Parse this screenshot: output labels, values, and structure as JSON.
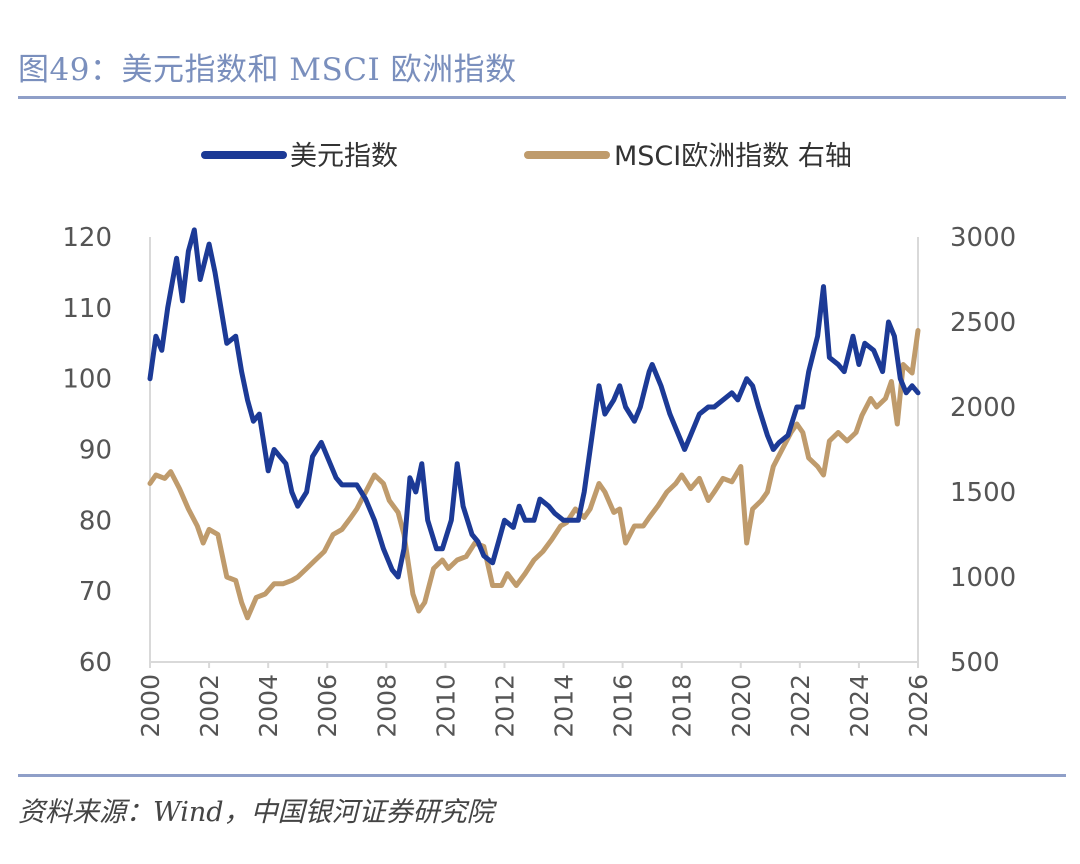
{
  "header": {
    "title": "图49：美元指数和 MSCI 欧洲指数"
  },
  "footer": {
    "source": "资料来源：Wind，中国银河证券研究院"
  },
  "chart_data": {
    "type": "line",
    "title": "图49：美元指数和 MSCI 欧洲指数",
    "xlabel": "",
    "x_range": [
      2000,
      2026
    ],
    "x_ticks": [
      "2000",
      "2002",
      "2004",
      "2006",
      "2008",
      "2010",
      "2012",
      "2014",
      "2016",
      "2018",
      "2020",
      "2022",
      "2024",
      "2026"
    ],
    "y_left": {
      "range": [
        60,
        120
      ],
      "ticks": [
        "120",
        "110",
        "100",
        "90",
        "80",
        "70",
        "60"
      ]
    },
    "y_right": {
      "range": [
        500,
        3000
      ],
      "ticks": [
        "3000",
        "2500",
        "2000",
        "1500",
        "1000",
        "500"
      ]
    },
    "grid": false,
    "legend_position": "top",
    "series": [
      {
        "name": "美元指数",
        "axis": "left",
        "color": "#1c3a96",
        "points": [
          [
            2000.0,
            100
          ],
          [
            2000.2,
            106
          ],
          [
            2000.4,
            104
          ],
          [
            2000.6,
            110
          ],
          [
            2000.9,
            117
          ],
          [
            2001.1,
            111
          ],
          [
            2001.3,
            118
          ],
          [
            2001.5,
            121
          ],
          [
            2001.7,
            114
          ],
          [
            2002.0,
            119
          ],
          [
            2002.2,
            115
          ],
          [
            2002.4,
            110
          ],
          [
            2002.6,
            105
          ],
          [
            2002.9,
            106
          ],
          [
            2003.1,
            101
          ],
          [
            2003.3,
            97
          ],
          [
            2003.5,
            94
          ],
          [
            2003.7,
            95
          ],
          [
            2004.0,
            87
          ],
          [
            2004.2,
            90
          ],
          [
            2004.4,
            89
          ],
          [
            2004.6,
            88
          ],
          [
            2004.8,
            84
          ],
          [
            2005.0,
            82
          ],
          [
            2005.3,
            84
          ],
          [
            2005.5,
            89
          ],
          [
            2005.8,
            91
          ],
          [
            2006.0,
            89
          ],
          [
            2006.3,
            86
          ],
          [
            2006.5,
            85
          ],
          [
            2006.8,
            85
          ],
          [
            2007.0,
            85
          ],
          [
            2007.3,
            83
          ],
          [
            2007.6,
            80
          ],
          [
            2007.9,
            76
          ],
          [
            2008.2,
            73
          ],
          [
            2008.4,
            72
          ],
          [
            2008.6,
            76
          ],
          [
            2008.8,
            86
          ],
          [
            2009.0,
            84
          ],
          [
            2009.2,
            88
          ],
          [
            2009.4,
            80
          ],
          [
            2009.7,
            76
          ],
          [
            2009.9,
            76
          ],
          [
            2010.2,
            80
          ],
          [
            2010.4,
            88
          ],
          [
            2010.6,
            82
          ],
          [
            2010.9,
            78
          ],
          [
            2011.1,
            77
          ],
          [
            2011.3,
            75
          ],
          [
            2011.6,
            74
          ],
          [
            2011.8,
            77
          ],
          [
            2012.0,
            80
          ],
          [
            2012.3,
            79
          ],
          [
            2012.5,
            82
          ],
          [
            2012.7,
            80
          ],
          [
            2013.0,
            80
          ],
          [
            2013.2,
            83
          ],
          [
            2013.5,
            82
          ],
          [
            2013.7,
            81
          ],
          [
            2014.0,
            80
          ],
          [
            2014.3,
            80
          ],
          [
            2014.5,
            80
          ],
          [
            2014.7,
            84
          ],
          [
            2015.0,
            93
          ],
          [
            2015.2,
            99
          ],
          [
            2015.4,
            95
          ],
          [
            2015.7,
            97
          ],
          [
            2015.9,
            99
          ],
          [
            2016.1,
            96
          ],
          [
            2016.4,
            94
          ],
          [
            2016.6,
            96
          ],
          [
            2016.9,
            101
          ],
          [
            2017.0,
            102
          ],
          [
            2017.3,
            99
          ],
          [
            2017.6,
            95
          ],
          [
            2017.8,
            93
          ],
          [
            2018.1,
            90
          ],
          [
            2018.3,
            92
          ],
          [
            2018.6,
            95
          ],
          [
            2018.9,
            96
          ],
          [
            2019.1,
            96
          ],
          [
            2019.4,
            97
          ],
          [
            2019.7,
            98
          ],
          [
            2019.9,
            97
          ],
          [
            2020.2,
            100
          ],
          [
            2020.4,
            99
          ],
          [
            2020.6,
            96
          ],
          [
            2020.9,
            92
          ],
          [
            2021.1,
            90
          ],
          [
            2021.3,
            91
          ],
          [
            2021.6,
            92
          ],
          [
            2021.9,
            96
          ],
          [
            2022.1,
            96
          ],
          [
            2022.3,
            101
          ],
          [
            2022.6,
            106
          ],
          [
            2022.8,
            113
          ],
          [
            2023.0,
            103
          ],
          [
            2023.3,
            102
          ],
          [
            2023.5,
            101
          ],
          [
            2023.8,
            106
          ],
          [
            2024.0,
            102
          ],
          [
            2024.2,
            105
          ],
          [
            2024.5,
            104
          ],
          [
            2024.8,
            101
          ],
          [
            2025.0,
            108
          ],
          [
            2025.2,
            106
          ],
          [
            2025.4,
            100
          ],
          [
            2025.6,
            98
          ],
          [
            2025.8,
            99
          ],
          [
            2026.0,
            98
          ]
        ]
      },
      {
        "name": "MSCI欧洲指数 右轴",
        "axis": "right",
        "color": "#bf9b6c",
        "points": [
          [
            2000.0,
            1550
          ],
          [
            2000.2,
            1600
          ],
          [
            2000.5,
            1580
          ],
          [
            2000.7,
            1620
          ],
          [
            2001.0,
            1520
          ],
          [
            2001.3,
            1400
          ],
          [
            2001.6,
            1300
          ],
          [
            2001.8,
            1200
          ],
          [
            2002.0,
            1280
          ],
          [
            2002.3,
            1250
          ],
          [
            2002.6,
            1000
          ],
          [
            2002.9,
            980
          ],
          [
            2003.1,
            850
          ],
          [
            2003.3,
            760
          ],
          [
            2003.6,
            880
          ],
          [
            2003.9,
            900
          ],
          [
            2004.2,
            960
          ],
          [
            2004.5,
            960
          ],
          [
            2004.8,
            980
          ],
          [
            2005.0,
            1000
          ],
          [
            2005.3,
            1050
          ],
          [
            2005.6,
            1100
          ],
          [
            2005.9,
            1150
          ],
          [
            2006.2,
            1250
          ],
          [
            2006.5,
            1280
          ],
          [
            2006.8,
            1350
          ],
          [
            2007.0,
            1400
          ],
          [
            2007.3,
            1500
          ],
          [
            2007.6,
            1600
          ],
          [
            2007.9,
            1550
          ],
          [
            2008.1,
            1450
          ],
          [
            2008.4,
            1380
          ],
          [
            2008.6,
            1250
          ],
          [
            2008.9,
            900
          ],
          [
            2009.1,
            800
          ],
          [
            2009.3,
            850
          ],
          [
            2009.6,
            1050
          ],
          [
            2009.9,
            1100
          ],
          [
            2010.1,
            1050
          ],
          [
            2010.4,
            1100
          ],
          [
            2010.7,
            1120
          ],
          [
            2011.0,
            1200
          ],
          [
            2011.3,
            1180
          ],
          [
            2011.6,
            950
          ],
          [
            2011.9,
            950
          ],
          [
            2012.1,
            1020
          ],
          [
            2012.4,
            950
          ],
          [
            2012.7,
            1020
          ],
          [
            2013.0,
            1100
          ],
          [
            2013.3,
            1150
          ],
          [
            2013.6,
            1220
          ],
          [
            2013.9,
            1300
          ],
          [
            2014.1,
            1320
          ],
          [
            2014.4,
            1400
          ],
          [
            2014.7,
            1350
          ],
          [
            2014.9,
            1400
          ],
          [
            2015.2,
            1550
          ],
          [
            2015.4,
            1500
          ],
          [
            2015.7,
            1380
          ],
          [
            2015.9,
            1400
          ],
          [
            2016.1,
            1200
          ],
          [
            2016.4,
            1300
          ],
          [
            2016.7,
            1300
          ],
          [
            2016.9,
            1350
          ],
          [
            2017.2,
            1420
          ],
          [
            2017.5,
            1500
          ],
          [
            2017.8,
            1550
          ],
          [
            2018.0,
            1600
          ],
          [
            2018.3,
            1520
          ],
          [
            2018.6,
            1580
          ],
          [
            2018.9,
            1450
          ],
          [
            2019.1,
            1500
          ],
          [
            2019.4,
            1580
          ],
          [
            2019.7,
            1560
          ],
          [
            2020.0,
            1650
          ],
          [
            2020.2,
            1200
          ],
          [
            2020.4,
            1400
          ],
          [
            2020.7,
            1450
          ],
          [
            2020.9,
            1500
          ],
          [
            2021.1,
            1650
          ],
          [
            2021.4,
            1750
          ],
          [
            2021.7,
            1850
          ],
          [
            2021.9,
            1900
          ],
          [
            2022.1,
            1850
          ],
          [
            2022.3,
            1700
          ],
          [
            2022.6,
            1650
          ],
          [
            2022.8,
            1600
          ],
          [
            2023.0,
            1800
          ],
          [
            2023.3,
            1850
          ],
          [
            2023.6,
            1800
          ],
          [
            2023.9,
            1850
          ],
          [
            2024.1,
            1950
          ],
          [
            2024.4,
            2050
          ],
          [
            2024.6,
            2000
          ],
          [
            2024.9,
            2050
          ],
          [
            2025.1,
            2150
          ],
          [
            2025.3,
            1900
          ],
          [
            2025.5,
            2250
          ],
          [
            2025.8,
            2200
          ],
          [
            2026.0,
            2450
          ]
        ]
      }
    ]
  }
}
